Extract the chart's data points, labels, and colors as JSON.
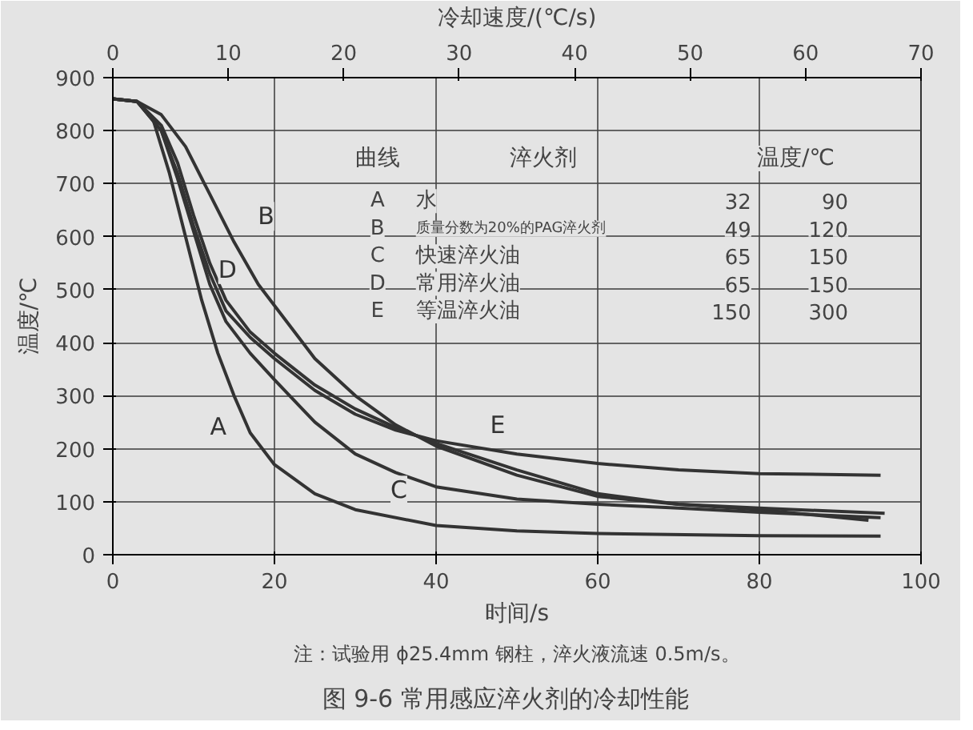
{
  "chart_data": {
    "type": "line",
    "title": "图 9-6    常用感应淬火剂的冷却性能",
    "xlabel": "时间/s",
    "ylabel": "温度/℃",
    "x2label": "冷却速度/(℃/s)",
    "xlim": [
      0,
      100
    ],
    "xticks": [
      0,
      20,
      40,
      60,
      80,
      100
    ],
    "ylim": [
      0,
      900
    ],
    "yticks": [
      0,
      100,
      200,
      300,
      400,
      500,
      600,
      700,
      800,
      900
    ],
    "x2lim": [
      0,
      70
    ],
    "x2ticks": [
      0,
      10,
      20,
      30,
      40,
      50,
      60,
      70
    ],
    "grid": true,
    "legend": false,
    "line_style": "solid",
    "series": [
      {
        "name": "A",
        "color": "#333333",
        "x": [
          0,
          3,
          5,
          7,
          9,
          11,
          13,
          15,
          17,
          20,
          25,
          30,
          40,
          50,
          60,
          80,
          95
        ],
        "values": [
          860,
          855,
          820,
          720,
          600,
          480,
          380,
          300,
          230,
          170,
          115,
          85,
          55,
          45,
          40,
          36,
          35
        ]
      },
      {
        "name": "B",
        "color": "#333333",
        "x": [
          0,
          3,
          6,
          9,
          12,
          15,
          18,
          20,
          25,
          30,
          35,
          40,
          50,
          60,
          70,
          80,
          93.5
        ],
        "values": [
          860,
          855,
          830,
          770,
          680,
          590,
          510,
          470,
          370,
          300,
          245,
          205,
          150,
          110,
          95,
          85,
          65
        ]
      },
      {
        "name": "C",
        "color": "#333333",
        "x": [
          0,
          3,
          6,
          8,
          10,
          12,
          14,
          17,
          20,
          25,
          30,
          35,
          40,
          50,
          60,
          70,
          80,
          95
        ],
        "values": [
          860,
          855,
          800,
          710,
          610,
          510,
          440,
          380,
          330,
          250,
          190,
          155,
          128,
          105,
          95,
          88,
          80,
          70
        ]
      },
      {
        "name": "D",
        "color": "#333333",
        "x": [
          0,
          3,
          6,
          8,
          10,
          12,
          14,
          17,
          20,
          25,
          30,
          35,
          40,
          50,
          60,
          70,
          80,
          95.5
        ],
        "values": [
          860,
          855,
          810,
          740,
          640,
          550,
          480,
          420,
          380,
          320,
          275,
          240,
          210,
          160,
          115,
          95,
          88,
          78
        ]
      },
      {
        "name": "E",
        "color": "#333333",
        "x": [
          0,
          3,
          6,
          8,
          10,
          12,
          14,
          17,
          20,
          25,
          30,
          35,
          40,
          50,
          60,
          70,
          80,
          95
        ],
        "values": [
          860,
          855,
          800,
          720,
          620,
          530,
          460,
          410,
          370,
          310,
          265,
          235,
          215,
          190,
          172,
          160,
          153,
          150
        ]
      }
    ],
    "annotations": [
      "曲线",
      "淬火剂",
      "温度/℃",
      "A",
      "水",
      "32",
      "90",
      "B",
      "质量分数为20%的PAG淬火剂",
      "49",
      "120",
      "C",
      "快速淬火油",
      "65",
      "150",
      "D",
      "常用淬火油",
      "65",
      "150",
      "E",
      "等温淬火油",
      "150",
      "300",
      "注：试验用 ϕ25.4mm 钢柱，淬火液流速 0.5m/s。"
    ]
  }
}
